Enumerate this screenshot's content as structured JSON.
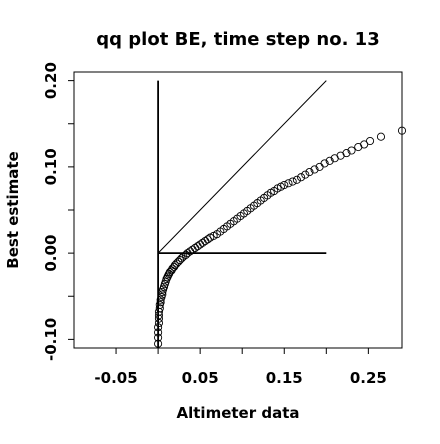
{
  "chart_data": {
    "type": "scatter",
    "title": "qq plot BE, time step no. 13",
    "xlabel": "Altimeter data",
    "ylabel": "Best estimate",
    "xlim": [
      -0.1,
      0.29
    ],
    "ylim": [
      -0.11,
      0.21
    ],
    "x_ticks": [
      -0.05,
      0.05,
      0.15,
      0.25
    ],
    "x_tick_labels": [
      "-0.05",
      "0.05",
      "0.15",
      "0.25"
    ],
    "x_minor_ticks": [
      0.0,
      0.1,
      0.2
    ],
    "y_ticks": [
      -0.1,
      0.0,
      0.1,
      0.2
    ],
    "y_tick_labels": [
      "-0.10",
      "0.00",
      "0.10",
      "0.20"
    ],
    "y_minor_ticks": [
      -0.05,
      0.05,
      0.15
    ],
    "reference_lines": [
      {
        "name": "identity",
        "x": [
          0.0,
          0.2
        ],
        "y": [
          0.0,
          0.2
        ]
      },
      {
        "name": "zero-line",
        "x": [
          0.0,
          0.2
        ],
        "y": [
          0.0,
          0.0
        ]
      },
      {
        "name": "vertical-axis",
        "x": [
          0.0,
          0.0
        ],
        "y": [
          -0.11,
          0.2
        ]
      }
    ],
    "series": [
      {
        "marker": "open-circle",
        "x": [
          0.0,
          0.0,
          0.0,
          0.0,
          0.001,
          0.001,
          0.001,
          0.001,
          0.002,
          0.002,
          0.003,
          0.003,
          0.004,
          0.005,
          0.005,
          0.006,
          0.007,
          0.008,
          0.009,
          0.01,
          0.011,
          0.012,
          0.013,
          0.014,
          0.016,
          0.017,
          0.019,
          0.02,
          0.022,
          0.024,
          0.026,
          0.028,
          0.03,
          0.033,
          0.035,
          0.038,
          0.041,
          0.044,
          0.047,
          0.05,
          0.053,
          0.056,
          0.059,
          0.062,
          0.066,
          0.07,
          0.074,
          0.078,
          0.082,
          0.086,
          0.09,
          0.094,
          0.098,
          0.102,
          0.106,
          0.11,
          0.114,
          0.118,
          0.122,
          0.126,
          0.13,
          0.134,
          0.138,
          0.142,
          0.146,
          0.15,
          0.155,
          0.16,
          0.165,
          0.17,
          0.175,
          0.18,
          0.186,
          0.192,
          0.198,
          0.204,
          0.21,
          0.217,
          0.224,
          0.23,
          0.238,
          0.245,
          0.252,
          0.265,
          0.29
        ],
        "y": [
          -0.105,
          -0.098,
          -0.092,
          -0.086,
          -0.081,
          -0.076,
          -0.072,
          -0.068,
          -0.064,
          -0.06,
          -0.057,
          -0.054,
          -0.051,
          -0.048,
          -0.045,
          -0.042,
          -0.039,
          -0.036,
          -0.033,
          -0.03,
          -0.028,
          -0.026,
          -0.024,
          -0.022,
          -0.02,
          -0.018,
          -0.016,
          -0.014,
          -0.012,
          -0.01,
          -0.008,
          -0.006,
          -0.004,
          -0.002,
          0.0,
          0.002,
          0.004,
          0.006,
          0.008,
          0.01,
          0.012,
          0.014,
          0.016,
          0.018,
          0.02,
          0.022,
          0.025,
          0.028,
          0.031,
          0.034,
          0.037,
          0.04,
          0.043,
          0.046,
          0.049,
          0.052,
          0.055,
          0.058,
          0.061,
          0.064,
          0.067,
          0.07,
          0.072,
          0.075,
          0.077,
          0.079,
          0.081,
          0.083,
          0.085,
          0.088,
          0.091,
          0.094,
          0.097,
          0.1,
          0.104,
          0.107,
          0.11,
          0.113,
          0.116,
          0.119,
          0.123,
          0.126,
          0.13,
          0.135,
          0.142
        ]
      }
    ]
  }
}
